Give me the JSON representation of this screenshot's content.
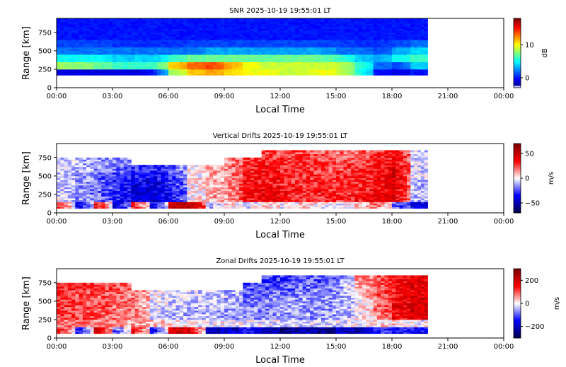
{
  "chart_data": [
    {
      "type": "heatmap",
      "title": "SNR 2025-10-19 19:55:01 LT",
      "xlabel": "Local Time",
      "ylabel": "Range [km]",
      "xticks": [
        "00:00",
        "03:00",
        "06:00",
        "09:00",
        "12:00",
        "15:00",
        "18:00",
        "21:00",
        "00:00"
      ],
      "yticks": [
        "0",
        "250",
        "500",
        "750"
      ],
      "xlim_hours": [
        0,
        24
      ],
      "ylim": [
        0,
        940
      ],
      "data_end_hours": 19.92,
      "colorbar": {
        "label": "dB",
        "ticks": [
          "0",
          "10"
        ],
        "tick_values": [
          0,
          10
        ],
        "range": [
          -3,
          18
        ],
        "cmap": "jet"
      },
      "x_hours": [
        0,
        1,
        2,
        3,
        4,
        5,
        6,
        7,
        8,
        9,
        10,
        11,
        12,
        13,
        14,
        15,
        16,
        17,
        18,
        19
      ],
      "y_range_km": [
        100,
        200,
        300,
        400,
        500,
        600,
        700,
        800,
        900
      ],
      "values": [
        [
          null,
          null,
          null,
          null,
          null,
          null,
          null,
          null,
          null,
          null,
          null,
          null,
          null,
          null,
          null,
          null,
          null,
          null,
          null,
          null
        ],
        [
          -1,
          -1,
          -1,
          -1,
          -1,
          0,
          8,
          11,
          12,
          11,
          10,
          10,
          9,
          9,
          10,
          9,
          6,
          0,
          -1,
          0
        ],
        [
          8,
          8,
          7,
          6,
          6,
          6,
          11,
          13,
          14,
          12,
          10,
          9,
          9,
          9,
          9,
          9,
          6,
          2,
          1,
          4
        ],
        [
          5,
          5,
          5,
          4,
          4,
          4,
          6,
          7,
          7,
          7,
          7,
          7,
          7,
          7,
          7,
          6,
          4,
          3,
          5,
          6
        ],
        [
          2,
          2,
          2,
          2,
          2,
          2,
          2,
          2,
          3,
          3,
          3,
          3,
          3,
          3,
          3,
          2,
          2,
          1,
          3,
          4
        ],
        [
          1,
          1,
          1,
          0.5,
          0.5,
          0.5,
          0.5,
          1,
          1,
          1,
          1,
          1,
          1,
          1,
          1,
          1,
          0.5,
          0.5,
          1,
          2
        ],
        [
          0,
          0,
          0,
          0,
          0,
          0,
          0,
          0,
          0,
          0,
          0,
          0,
          0,
          0,
          0,
          0,
          0,
          0,
          0,
          0
        ],
        [
          0,
          0,
          0,
          0,
          0,
          0,
          0,
          0,
          0,
          0,
          0,
          0,
          0,
          0,
          0,
          0,
          0,
          0,
          0,
          0
        ],
        [
          0,
          0,
          0,
          0,
          0,
          0,
          0,
          0,
          0,
          0,
          0,
          0,
          0,
          0,
          0,
          0,
          0,
          0,
          0,
          0
        ]
      ]
    },
    {
      "type": "heatmap",
      "title": "Vertical Drifts 2025-10-19 19:55:01 LT",
      "xlabel": "Local Time",
      "ylabel": "Range [km]",
      "xticks": [
        "00:00",
        "03:00",
        "06:00",
        "09:00",
        "12:00",
        "15:00",
        "18:00",
        "21:00",
        "00:00"
      ],
      "yticks": [
        "0",
        "250",
        "500",
        "750"
      ],
      "xlim_hours": [
        0,
        24
      ],
      "ylim": [
        0,
        940
      ],
      "data_end_hours": 19.92,
      "colorbar": {
        "label": "m/s",
        "ticks": [
          "50",
          "0",
          "−50"
        ],
        "tick_values": [
          50,
          0,
          -50
        ],
        "range": [
          -70,
          70
        ],
        "cmap": "seismic"
      },
      "x_hours": [
        0,
        1,
        2,
        3,
        4,
        5,
        6,
        7,
        8,
        9,
        10,
        11,
        12,
        13,
        14,
        15,
        16,
        17,
        18,
        19
      ],
      "y_range_km": [
        100,
        200,
        300,
        400,
        500,
        600,
        700,
        800,
        900
      ],
      "values": [
        [
          30,
          -40,
          40,
          -50,
          30,
          -40,
          50,
          55,
          -10,
          5,
          -5,
          5,
          0,
          5,
          0,
          -5,
          10,
          20,
          -20,
          -40
        ],
        [
          -5,
          -15,
          -20,
          -30,
          -40,
          -40,
          -35,
          0,
          10,
          15,
          35,
          40,
          35,
          30,
          30,
          30,
          35,
          40,
          40,
          -10
        ],
        [
          -5,
          -15,
          -20,
          -30,
          -40,
          -40,
          -35,
          0,
          10,
          15,
          35,
          40,
          35,
          30,
          30,
          30,
          30,
          35,
          45,
          -10
        ],
        [
          -5,
          -15,
          -20,
          -30,
          -40,
          -40,
          -30,
          0,
          10,
          15,
          35,
          35,
          30,
          30,
          30,
          30,
          30,
          35,
          45,
          -10
        ],
        [
          -5,
          -15,
          -20,
          -25,
          -35,
          -35,
          -30,
          0,
          10,
          15,
          35,
          35,
          30,
          30,
          25,
          30,
          30,
          35,
          45,
          -5
        ],
        [
          -5,
          -10,
          -15,
          -20,
          -30,
          -30,
          -25,
          0,
          10,
          15,
          30,
          35,
          30,
          30,
          25,
          25,
          30,
          35,
          45,
          -5
        ],
        [
          -5,
          -10,
          -15,
          -15,
          null,
          null,
          null,
          null,
          null,
          15,
          30,
          30,
          30,
          30,
          25,
          25,
          25,
          30,
          40,
          -5
        ],
        [
          null,
          null,
          null,
          null,
          null,
          null,
          null,
          null,
          null,
          null,
          null,
          25,
          25,
          25,
          20,
          20,
          20,
          30,
          40,
          -5
        ],
        [
          null,
          null,
          null,
          null,
          null,
          null,
          null,
          null,
          null,
          null,
          null,
          null,
          null,
          null,
          null,
          null,
          null,
          null,
          null,
          null
        ]
      ]
    },
    {
      "type": "heatmap",
      "title": "Zonal Drifts 2025-10-19 19:55:01 LT",
      "xlabel": "Local Time",
      "ylabel": "Range [km]",
      "xticks": [
        "00:00",
        "03:00",
        "06:00",
        "09:00",
        "12:00",
        "15:00",
        "18:00",
        "21:00",
        "00:00"
      ],
      "yticks": [
        "0",
        "250",
        "500",
        "750"
      ],
      "xlim_hours": [
        0,
        24
      ],
      "ylim": [
        0,
        940
      ],
      "data_end_hours": 19.92,
      "colorbar": {
        "label": "m/s",
        "ticks": [
          "200",
          "0",
          "−200"
        ],
        "tick_values": [
          200,
          0,
          -200
        ],
        "range": [
          -300,
          300
        ],
        "cmap": "seismic"
      },
      "x_hours": [
        0,
        1,
        2,
        3,
        4,
        5,
        6,
        7,
        8,
        9,
        10,
        11,
        12,
        13,
        14,
        15,
        16,
        17,
        18,
        19
      ],
      "y_range_km": [
        100,
        200,
        300,
        400,
        500,
        600,
        700,
        800,
        900
      ],
      "values": [
        [
          150,
          -150,
          200,
          -100,
          150,
          -150,
          200,
          200,
          -200,
          -200,
          -150,
          -200,
          -250,
          -200,
          -250,
          -200,
          -250,
          -100,
          -150,
          -150
        ],
        [
          80,
          80,
          80,
          60,
          60,
          30,
          20,
          0,
          0,
          0,
          -10,
          -20,
          -20,
          -20,
          -20,
          -20,
          0,
          20,
          20,
          0
        ],
        [
          110,
          110,
          100,
          90,
          80,
          -20,
          -40,
          -40,
          -40,
          -50,
          -60,
          -60,
          -60,
          -60,
          -60,
          -50,
          0,
          60,
          150,
          180
        ],
        [
          120,
          110,
          100,
          90,
          80,
          -20,
          -40,
          -40,
          -40,
          -50,
          -70,
          -70,
          -60,
          -60,
          -60,
          -50,
          0,
          80,
          170,
          200
        ],
        [
          120,
          110,
          100,
          90,
          80,
          -10,
          -30,
          -30,
          -30,
          -50,
          -70,
          -70,
          -60,
          -60,
          -60,
          -50,
          0,
          80,
          160,
          200
        ],
        [
          120,
          110,
          100,
          90,
          80,
          0,
          -20,
          -20,
          -30,
          -40,
          -80,
          -80,
          -80,
          -70,
          -70,
          -60,
          20,
          100,
          150,
          180
        ],
        [
          130,
          120,
          110,
          100,
          null,
          null,
          null,
          null,
          null,
          null,
          -100,
          -100,
          -100,
          -80,
          -80,
          -60,
          40,
          100,
          150,
          180
        ],
        [
          null,
          null,
          null,
          null,
          null,
          null,
          null,
          null,
          null,
          null,
          null,
          -120,
          -120,
          -100,
          -100,
          -80,
          60,
          100,
          150,
          180
        ],
        [
          null,
          null,
          null,
          null,
          null,
          null,
          null,
          null,
          null,
          null,
          null,
          null,
          null,
          null,
          null,
          null,
          null,
          null,
          null,
          null
        ]
      ]
    }
  ]
}
